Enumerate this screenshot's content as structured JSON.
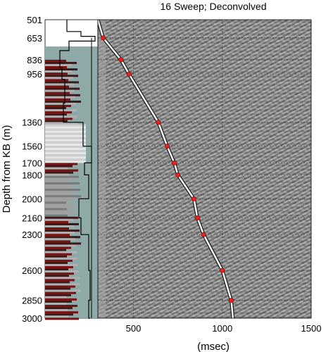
{
  "chart_data": {
    "type": "scatter",
    "title": "16 Sweep; Deconvolved",
    "xlabel": "(msec)",
    "ylabel": "Depth from KB (m)",
    "xlim": [
      0,
      1500
    ],
    "x_ticks": [
      500,
      1000,
      1500
    ],
    "y_ticks": [
      501,
      653,
      836,
      956,
      1360,
      1560,
      1700,
      1800,
      2000,
      2160,
      2300,
      2600,
      2850,
      3000
    ],
    "ylim": [
      501,
      3000
    ],
    "y_reversed": true,
    "grid": true,
    "series": [
      {
        "name": "",
        "points": [
          {
            "x": 330,
            "y": 653
          },
          {
            "x": 430,
            "y": 836
          },
          {
            "x": 475,
            "y": 956
          },
          {
            "x": 640,
            "y": 1360
          },
          {
            "x": 690,
            "y": 1560
          },
          {
            "x": 730,
            "y": 1700
          },
          {
            "x": 750,
            "y": 1800
          },
          {
            "x": 840,
            "y": 2000
          },
          {
            "x": 860,
            "y": 2160
          },
          {
            "x": 895,
            "y": 2300
          },
          {
            "x": 1000,
            "y": 2600
          },
          {
            "x": 1050,
            "y": 2850
          }
        ]
      }
    ],
    "colors": {
      "pick_marker": "#e8231f",
      "first_break": "#ffffff",
      "seismic_background": "#888888",
      "log_fill_dark": "#7a1212",
      "log_fill_light": "#c8c8c8",
      "log_panel_bg": "#8fa9a9"
    }
  }
}
